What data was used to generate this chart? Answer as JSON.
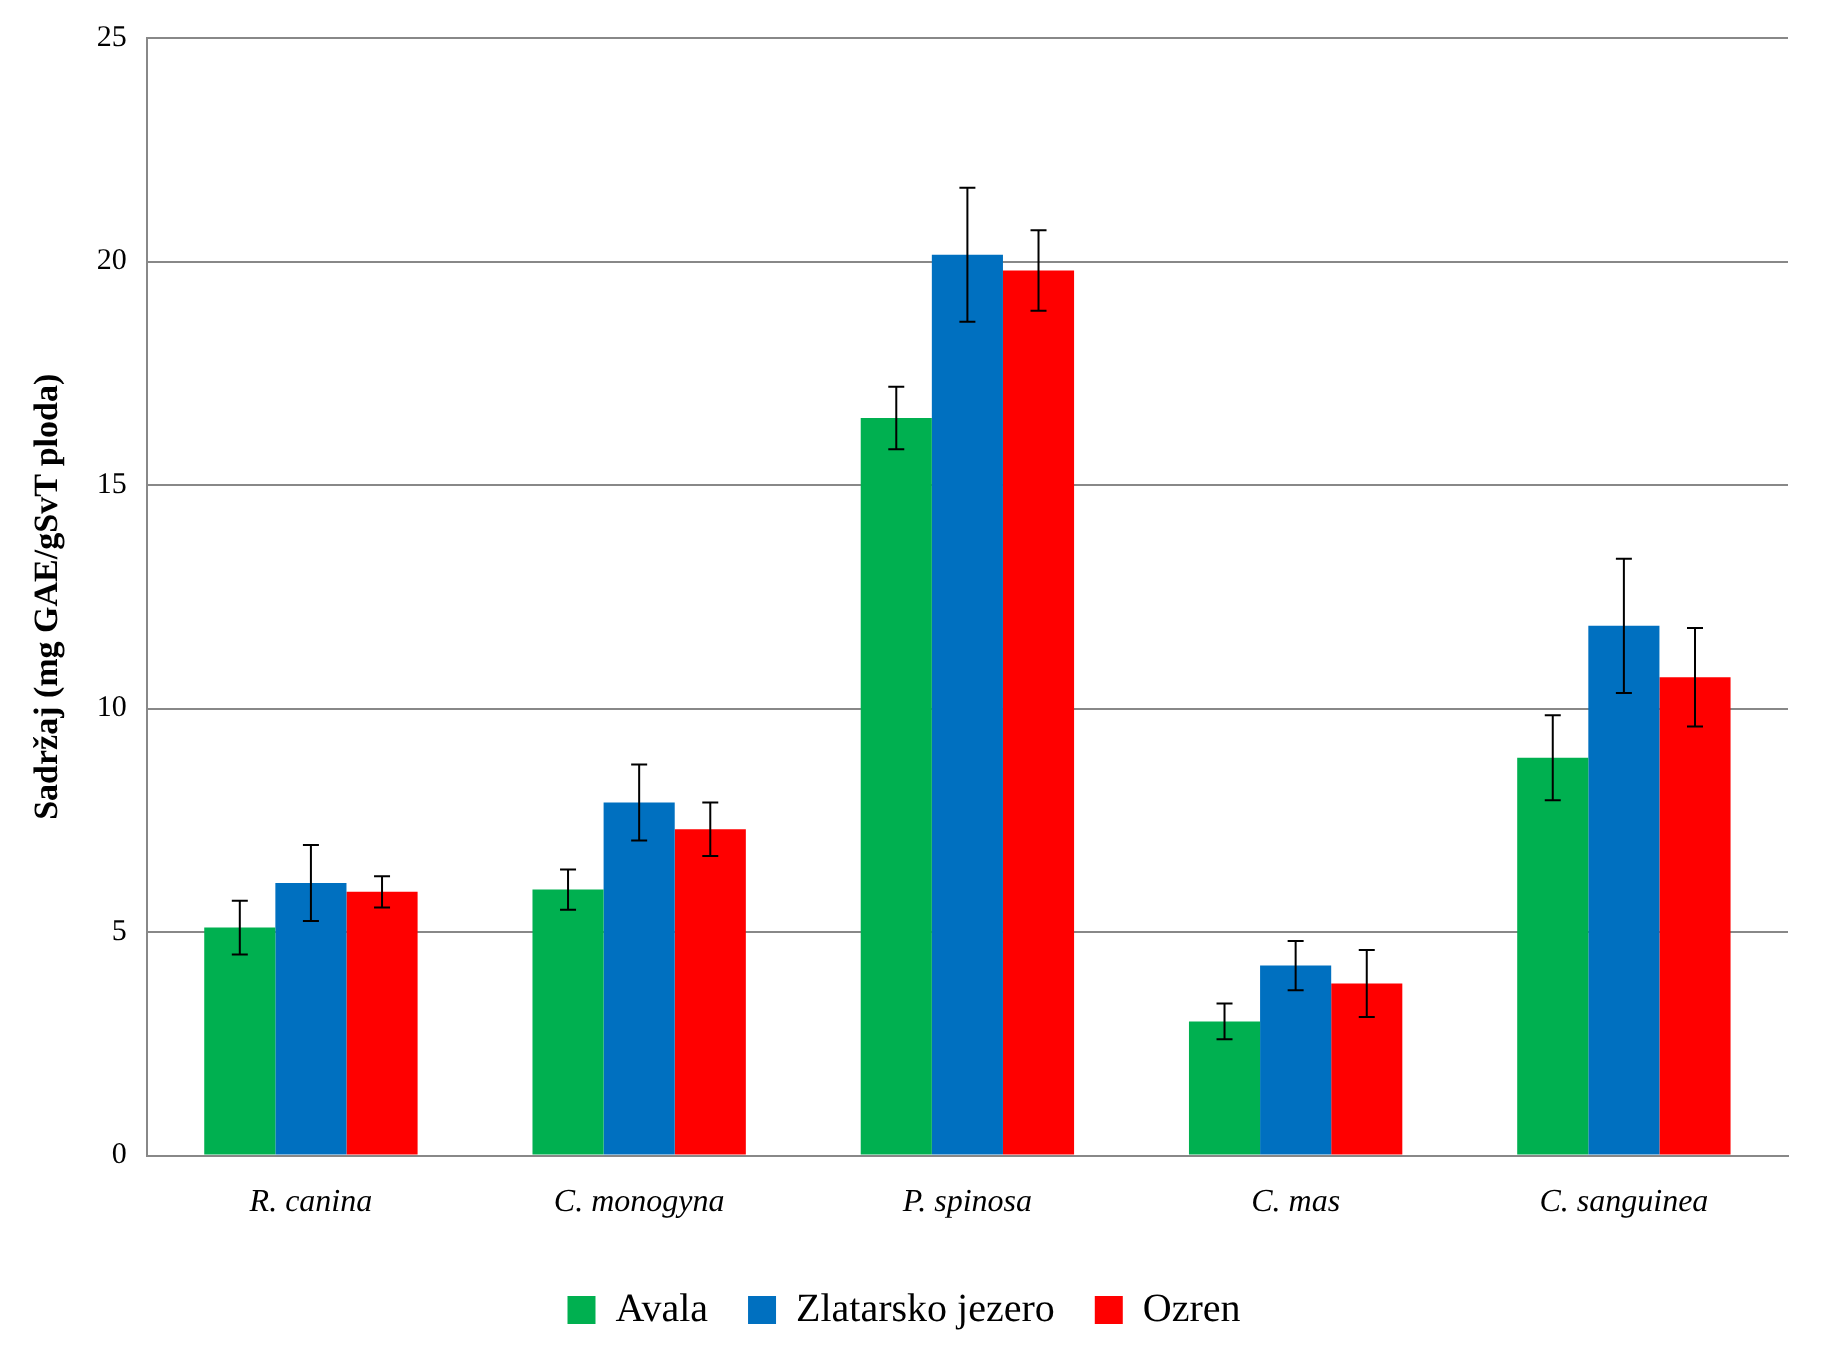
{
  "chart_data": {
    "type": "bar",
    "ylabel": "Sadržaj (mg GAE/gSvT ploda)",
    "categories": [
      "R. canina",
      "C. monogyna",
      "P. spinosa",
      "C. mas",
      "C. sanguinea"
    ],
    "series": [
      {
        "name": "Avala",
        "color": "#00b050",
        "values": [
          5.1,
          5.95,
          16.5,
          3.0,
          8.9
        ],
        "errors": [
          0.6,
          0.45,
          0.7,
          0.4,
          0.95
        ]
      },
      {
        "name": "Zlatarsko jezero",
        "color": "#0070c0",
        "values": [
          6.1,
          7.9,
          20.15,
          4.25,
          11.85
        ],
        "errors": [
          0.85,
          0.85,
          1.5,
          0.55,
          1.5
        ]
      },
      {
        "name": "Ozren",
        "color": "#ff0000",
        "values": [
          5.9,
          7.3,
          19.8,
          3.85,
          10.7
        ],
        "errors": [
          0.35,
          0.6,
          0.9,
          0.75,
          1.1
        ]
      }
    ],
    "ylim": [
      0,
      25
    ],
    "yticks": [
      0,
      5,
      10,
      15,
      20,
      25
    ],
    "grid": "y",
    "legend": "bottom"
  }
}
